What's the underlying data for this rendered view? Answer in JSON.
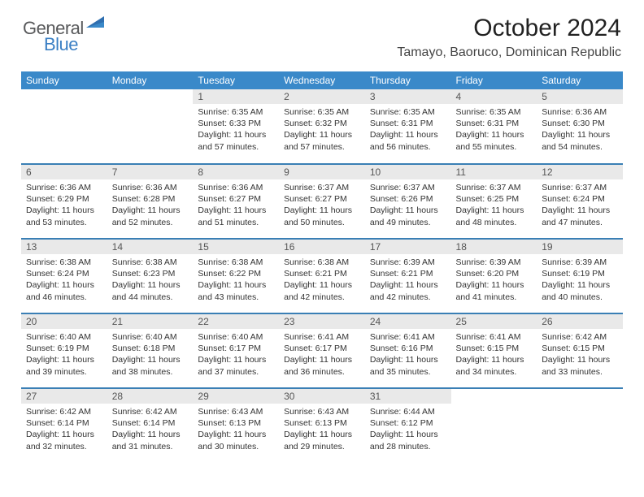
{
  "logo": {
    "text1": "General",
    "text2": "Blue"
  },
  "title": "October 2024",
  "location": "Tamayo, Baoruco, Dominican Republic",
  "colors": {
    "header_bg": "#3a89c9",
    "header_text": "#ffffff",
    "daynum_bg": "#e9e9e9",
    "row_border": "#3a7fb5",
    "logo_gray": "#58595b",
    "logo_blue": "#3a7fc4"
  },
  "daysOfWeek": [
    "Sunday",
    "Monday",
    "Tuesday",
    "Wednesday",
    "Thursday",
    "Friday",
    "Saturday"
  ],
  "label_sunrise": "Sunrise:",
  "label_sunset": "Sunset:",
  "label_daylight": "Daylight:",
  "first_weekday_index": 2,
  "days": [
    {
      "n": 1,
      "sunrise": "6:35 AM",
      "sunset": "6:33 PM",
      "daylight": "11 hours and 57 minutes."
    },
    {
      "n": 2,
      "sunrise": "6:35 AM",
      "sunset": "6:32 PM",
      "daylight": "11 hours and 57 minutes."
    },
    {
      "n": 3,
      "sunrise": "6:35 AM",
      "sunset": "6:31 PM",
      "daylight": "11 hours and 56 minutes."
    },
    {
      "n": 4,
      "sunrise": "6:35 AM",
      "sunset": "6:31 PM",
      "daylight": "11 hours and 55 minutes."
    },
    {
      "n": 5,
      "sunrise": "6:36 AM",
      "sunset": "6:30 PM",
      "daylight": "11 hours and 54 minutes."
    },
    {
      "n": 6,
      "sunrise": "6:36 AM",
      "sunset": "6:29 PM",
      "daylight": "11 hours and 53 minutes."
    },
    {
      "n": 7,
      "sunrise": "6:36 AM",
      "sunset": "6:28 PM",
      "daylight": "11 hours and 52 minutes."
    },
    {
      "n": 8,
      "sunrise": "6:36 AM",
      "sunset": "6:27 PM",
      "daylight": "11 hours and 51 minutes."
    },
    {
      "n": 9,
      "sunrise": "6:37 AM",
      "sunset": "6:27 PM",
      "daylight": "11 hours and 50 minutes."
    },
    {
      "n": 10,
      "sunrise": "6:37 AM",
      "sunset": "6:26 PM",
      "daylight": "11 hours and 49 minutes."
    },
    {
      "n": 11,
      "sunrise": "6:37 AM",
      "sunset": "6:25 PM",
      "daylight": "11 hours and 48 minutes."
    },
    {
      "n": 12,
      "sunrise": "6:37 AM",
      "sunset": "6:24 PM",
      "daylight": "11 hours and 47 minutes."
    },
    {
      "n": 13,
      "sunrise": "6:38 AM",
      "sunset": "6:24 PM",
      "daylight": "11 hours and 46 minutes."
    },
    {
      "n": 14,
      "sunrise": "6:38 AM",
      "sunset": "6:23 PM",
      "daylight": "11 hours and 44 minutes."
    },
    {
      "n": 15,
      "sunrise": "6:38 AM",
      "sunset": "6:22 PM",
      "daylight": "11 hours and 43 minutes."
    },
    {
      "n": 16,
      "sunrise": "6:38 AM",
      "sunset": "6:21 PM",
      "daylight": "11 hours and 42 minutes."
    },
    {
      "n": 17,
      "sunrise": "6:39 AM",
      "sunset": "6:21 PM",
      "daylight": "11 hours and 42 minutes."
    },
    {
      "n": 18,
      "sunrise": "6:39 AM",
      "sunset": "6:20 PM",
      "daylight": "11 hours and 41 minutes."
    },
    {
      "n": 19,
      "sunrise": "6:39 AM",
      "sunset": "6:19 PM",
      "daylight": "11 hours and 40 minutes."
    },
    {
      "n": 20,
      "sunrise": "6:40 AM",
      "sunset": "6:19 PM",
      "daylight": "11 hours and 39 minutes."
    },
    {
      "n": 21,
      "sunrise": "6:40 AM",
      "sunset": "6:18 PM",
      "daylight": "11 hours and 38 minutes."
    },
    {
      "n": 22,
      "sunrise": "6:40 AM",
      "sunset": "6:17 PM",
      "daylight": "11 hours and 37 minutes."
    },
    {
      "n": 23,
      "sunrise": "6:41 AM",
      "sunset": "6:17 PM",
      "daylight": "11 hours and 36 minutes."
    },
    {
      "n": 24,
      "sunrise": "6:41 AM",
      "sunset": "6:16 PM",
      "daylight": "11 hours and 35 minutes."
    },
    {
      "n": 25,
      "sunrise": "6:41 AM",
      "sunset": "6:15 PM",
      "daylight": "11 hours and 34 minutes."
    },
    {
      "n": 26,
      "sunrise": "6:42 AM",
      "sunset": "6:15 PM",
      "daylight": "11 hours and 33 minutes."
    },
    {
      "n": 27,
      "sunrise": "6:42 AM",
      "sunset": "6:14 PM",
      "daylight": "11 hours and 32 minutes."
    },
    {
      "n": 28,
      "sunrise": "6:42 AM",
      "sunset": "6:14 PM",
      "daylight": "11 hours and 31 minutes."
    },
    {
      "n": 29,
      "sunrise": "6:43 AM",
      "sunset": "6:13 PM",
      "daylight": "11 hours and 30 minutes."
    },
    {
      "n": 30,
      "sunrise": "6:43 AM",
      "sunset": "6:13 PM",
      "daylight": "11 hours and 29 minutes."
    },
    {
      "n": 31,
      "sunrise": "6:44 AM",
      "sunset": "6:12 PM",
      "daylight": "11 hours and 28 minutes."
    }
  ]
}
